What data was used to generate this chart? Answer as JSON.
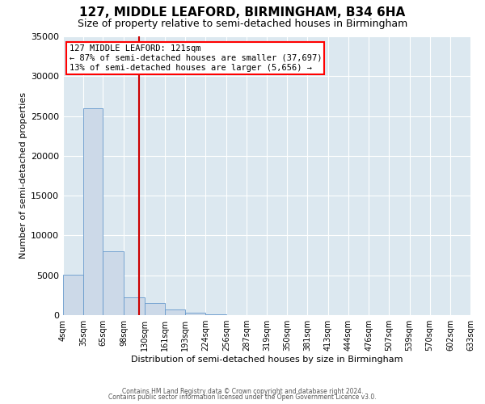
{
  "title": "127, MIDDLE LEAFORD, BIRMINGHAM, B34 6HA",
  "subtitle": "Size of property relative to semi-detached houses in Birmingham",
  "xlabel": "Distribution of semi-detached houses by size in Birmingham",
  "ylabel": "Number of semi-detached properties",
  "annotation_line1": "127 MIDDLE LEAFORD: 121sqm",
  "annotation_line2": "← 87% of semi-detached houses are smaller (37,697)",
  "annotation_line3": "13% of semi-detached houses are larger (5,656) →",
  "property_size": 121,
  "bar_color": "#ccd9e8",
  "bar_edge_color": "#6699cc",
  "red_line_color": "#cc0000",
  "bg_color": "#dce8f0",
  "plot_bg_color": "#dce8f0",
  "grid_color": "#ffffff",
  "ylim": [
    0,
    35000
  ],
  "bin_edges": [
    4,
    35,
    65,
    98,
    130,
    161,
    193,
    224,
    256,
    287,
    319,
    350,
    381,
    413,
    444,
    476,
    507,
    539,
    570,
    602,
    633
  ],
  "bin_counts": [
    5100,
    26000,
    8000,
    2200,
    1500,
    700,
    300,
    100,
    50,
    20,
    10,
    5,
    3,
    2,
    1,
    1,
    0,
    0,
    0,
    0
  ],
  "tick_labels": [
    "4sqm",
    "35sqm",
    "65sqm",
    "98sqm",
    "130sqm",
    "161sqm",
    "193sqm",
    "224sqm",
    "256sqm",
    "287sqm",
    "319sqm",
    "350sqm",
    "381sqm",
    "413sqm",
    "444sqm",
    "476sqm",
    "507sqm",
    "539sqm",
    "570sqm",
    "602sqm",
    "633sqm"
  ],
  "footer_line1": "Contains HM Land Registry data © Crown copyright and database right 2024.",
  "footer_line2": "Contains public sector information licensed under the Open Government Licence v3.0.",
  "title_fontsize": 11,
  "subtitle_fontsize": 9,
  "ylabel_fontsize": 8,
  "xlabel_fontsize": 8,
  "ytick_fontsize": 8,
  "xtick_fontsize": 7,
  "footer_fontsize": 5.5,
  "ann_fontsize": 7.5
}
